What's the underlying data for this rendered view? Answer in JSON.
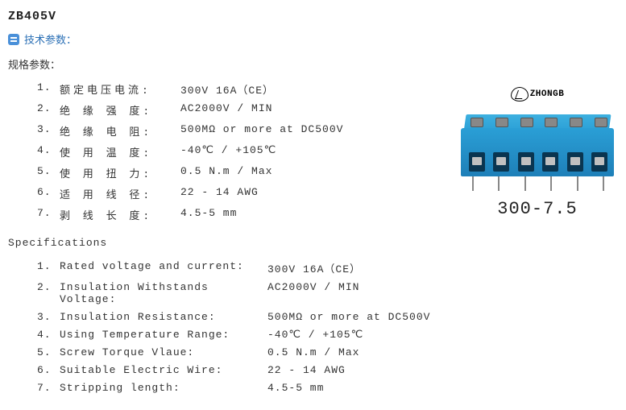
{
  "title": "ZB405V",
  "sectionIconColor": "#4a90d9",
  "sectionLabel": "技术参数：",
  "subheadingCn": "规格参数：",
  "specsCn": [
    {
      "n": "1.",
      "label": "额定电压电流:",
      "value": "300V 16A（CE）"
    },
    {
      "n": "2.",
      "label": "绝 缘 强 度:",
      "value": "AC2000V / MIN"
    },
    {
      "n": "3.",
      "label": "绝 缘 电 阻:",
      "value": "500MΩ  or more at DC500V"
    },
    {
      "n": "4.",
      "label": "使 用 温 度:",
      "value": "-40℃ / +105℃"
    },
    {
      "n": "5.",
      "label": "使 用 扭 力:",
      "value": "0.5 N.m / Max"
    },
    {
      "n": "6.",
      "label": "适 用 线 径:",
      "value": "22 - 14 AWG"
    },
    {
      "n": "7.",
      "label": "剥 线 长 度:",
      "value": "4.5-5 mm"
    }
  ],
  "subheadingEn": "Specifications",
  "specsEn": [
    {
      "n": "1.",
      "label": "Rated voltage and current:",
      "value": "300V 16A（CE）"
    },
    {
      "n": "2.",
      "label": "Insulation Withstands Voltage:",
      "value": "AC2000V / MIN"
    },
    {
      "n": "3.",
      "label": "Insulation Resistance:",
      "value": "500MΩ  or more at DC500V"
    },
    {
      "n": "4.",
      "label": "Using Temperature Range:",
      "value": "-40℃ / +105℃"
    },
    {
      "n": "5.",
      "label": "Screw Torque Vlaue:",
      "value": "0.5 N.m / Max"
    },
    {
      "n": "6.",
      "label": "Suitable Electric Wire:",
      "value": "22 - 14 AWG"
    },
    {
      "n": "7.",
      "label": "Stripping length:",
      "value": "4.5-5 mm"
    }
  ],
  "brand": "ZHONGB",
  "productModel": "300-7.5",
  "productColor": "#2a9fd6",
  "portCount": 6
}
